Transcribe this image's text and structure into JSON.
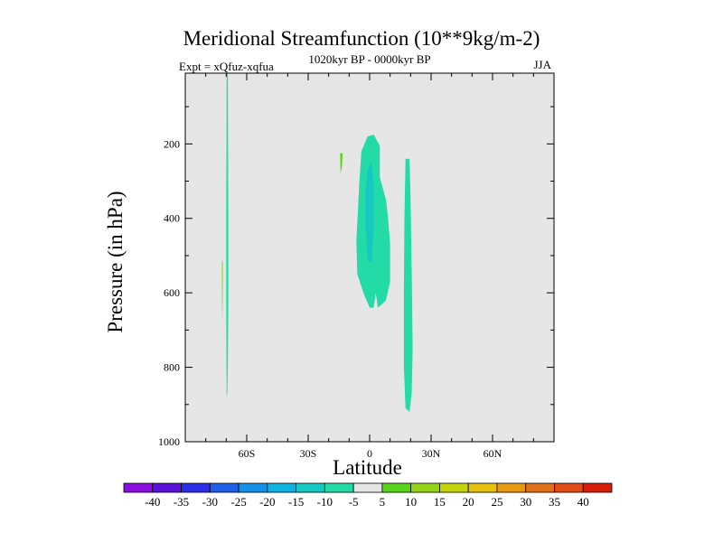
{
  "chart_data": {
    "type": "contour",
    "title": "Meridional Streamfunction (10**9kg/m-2)",
    "subtitle": "1020kyr BP - 0000kyr BP",
    "left_label": "Expt = xQfuz-xqfua",
    "right_label": "JJA",
    "xlabel": "Latitude",
    "ylabel": "Pressure (in hPa)",
    "xlim": [
      -90,
      90
    ],
    "ylim": [
      1000,
      10
    ],
    "xticks": [
      {
        "value": -60,
        "label": "60S"
      },
      {
        "value": -30,
        "label": "30S"
      },
      {
        "value": 0,
        "label": "0"
      },
      {
        "value": 30,
        "label": "30N"
      },
      {
        "value": 60,
        "label": "60N"
      }
    ],
    "yticks": [
      {
        "value": 200,
        "label": "200"
      },
      {
        "value": 400,
        "label": "400"
      },
      {
        "value": 600,
        "label": "600"
      },
      {
        "value": 800,
        "label": "800"
      },
      {
        "value": 1000,
        "label": "1000"
      }
    ],
    "colorbar": {
      "levels": [
        "-40",
        "-35",
        "-30",
        "-25",
        "-20",
        "-15",
        "-10",
        "-5",
        "5",
        "10",
        "15",
        "20",
        "25",
        "30",
        "35",
        "40"
      ],
      "colors": [
        "#8a0ee0",
        "#5a11d8",
        "#2a2ee6",
        "#1f5fe8",
        "#1590e6",
        "#0fb2e0",
        "#15c9c2",
        "#22dba6",
        "#e6e6e6",
        "#58d41a",
        "#96d418",
        "#c6d40c",
        "#e6c20e",
        "#e69a10",
        "#e0701a",
        "#e24a16",
        "#d81e0a"
      ]
    },
    "regions": [
      {
        "name": "sh-polar-narrow-band",
        "value": -7.5,
        "color": "#22dba6",
        "points": [
          [
            -69.8,
            10
          ],
          [
            -69.2,
            10
          ],
          [
            -69.1,
            200
          ],
          [
            -69.0,
            400
          ],
          [
            -69.0,
            650
          ],
          [
            -69.2,
            800
          ],
          [
            -69.5,
            870
          ],
          [
            -69.8,
            880
          ],
          [
            -69.9,
            800
          ],
          [
            -70.0,
            600
          ],
          [
            -70.0,
            400
          ],
          [
            -69.9,
            200
          ]
        ]
      },
      {
        "name": "sh-polar-positive-sliver",
        "value": 5,
        "color": "#58d41a",
        "points": [
          [
            -72.1,
            510
          ],
          [
            -71.7,
            520
          ],
          [
            -71.8,
            620
          ],
          [
            -71.9,
            680
          ],
          [
            -72.1,
            600
          ]
        ]
      },
      {
        "name": "subtropical-small-positive",
        "value": 5,
        "color": "#58d41a",
        "points": [
          [
            -14.4,
            225
          ],
          [
            -13.2,
            225
          ],
          [
            -13.5,
            260
          ],
          [
            -14.2,
            280
          ]
        ]
      },
      {
        "name": "equatorial-cell-outer",
        "value": -7.5,
        "color": "#22dba6",
        "points": [
          [
            -1,
            180
          ],
          [
            2,
            175
          ],
          [
            5,
            205
          ],
          [
            5,
            290
          ],
          [
            8,
            350
          ],
          [
            9,
            400
          ],
          [
            10,
            470
          ],
          [
            10,
            570
          ],
          [
            8,
            620
          ],
          [
            4,
            640
          ],
          [
            3,
            600
          ],
          [
            2,
            640
          ],
          [
            0,
            640
          ],
          [
            -3,
            600
          ],
          [
            -6,
            550
          ],
          [
            -6.5,
            460
          ],
          [
            -5,
            300
          ],
          [
            -4,
            220
          ]
        ]
      },
      {
        "name": "equatorial-cell-core",
        "value": -12.5,
        "color": "#15c9c2",
        "points": [
          [
            -1,
            270
          ],
          [
            1,
            250
          ],
          [
            2,
            310
          ],
          [
            2,
            420
          ],
          [
            1,
            520
          ],
          [
            -1,
            510
          ],
          [
            -2,
            420
          ],
          [
            -2,
            320
          ]
        ]
      },
      {
        "name": "nh-subtropical-band",
        "value": -7.5,
        "color": "#22dba6",
        "points": [
          [
            17.5,
            240
          ],
          [
            19.5,
            240
          ],
          [
            20,
            350
          ],
          [
            20.7,
            600
          ],
          [
            21,
            750
          ],
          [
            20.5,
            870
          ],
          [
            19.5,
            920
          ],
          [
            17.5,
            910
          ],
          [
            16.7,
            800
          ],
          [
            16.7,
            600
          ],
          [
            17,
            400
          ]
        ]
      }
    ]
  }
}
